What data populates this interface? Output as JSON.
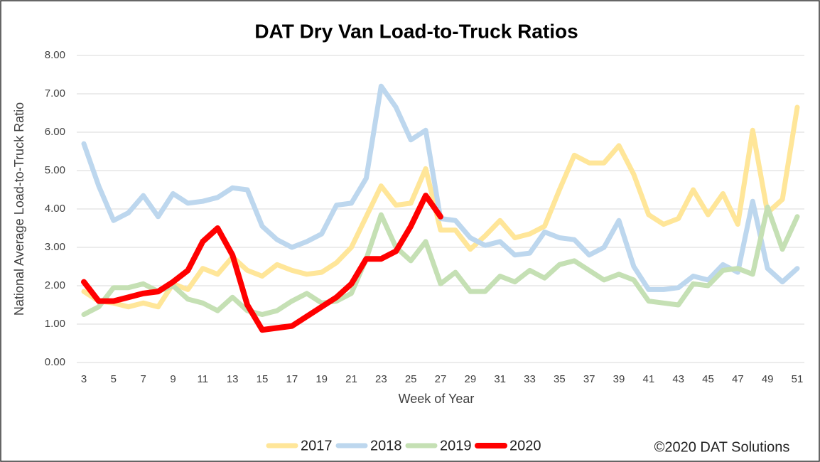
{
  "chart_data": {
    "type": "line",
    "title": "DAT Dry Van Load-to-Truck Ratios",
    "x_label": "Week of Year",
    "y_label": "National Average Load-to-Truck Ratio",
    "source": "©2020 DAT Solutions",
    "categories": [
      3,
      null,
      5,
      null,
      7,
      null,
      9,
      null,
      11,
      null,
      13,
      null,
      15,
      null,
      17,
      null,
      19,
      null,
      21,
      null,
      23,
      null,
      25,
      null,
      27,
      null,
      29,
      null,
      31,
      null,
      33,
      null,
      35,
      null,
      37,
      null,
      39,
      null,
      41,
      null,
      43,
      null,
      45,
      null,
      47,
      null,
      49,
      null,
      51
    ],
    "ylim": [
      0,
      8
    ],
    "yticks": [
      {
        "value": 0,
        "label": "0.00"
      },
      {
        "value": 1,
        "label": "1.00"
      },
      {
        "value": 2,
        "label": "2.00"
      },
      {
        "value": 3,
        "label": "3.00"
      },
      {
        "value": 4,
        "label": "4.00"
      },
      {
        "value": 5,
        "label": "5.00"
      },
      {
        "value": 6,
        "label": "6.00"
      },
      {
        "value": 7,
        "label": "7.00"
      },
      {
        "value": 8,
        "label": "8.00"
      }
    ],
    "grid": true,
    "legend": "bottom",
    "series": [
      {
        "name": "2017",
        "color": "#ffe699",
        "values": [
          1.85,
          1.6,
          1.55,
          1.45,
          1.55,
          1.45,
          2.05,
          1.9,
          2.45,
          2.3,
          2.75,
          2.4,
          2.25,
          2.55,
          2.4,
          2.3,
          2.35,
          2.6,
          3.0,
          3.8,
          4.6,
          4.1,
          4.15,
          5.05,
          3.45,
          3.45,
          2.95,
          3.3,
          3.7,
          3.25,
          3.35,
          3.55,
          4.5,
          5.4,
          5.2,
          5.2,
          5.65,
          4.9,
          3.85,
          3.6,
          3.75,
          4.5,
          3.85,
          4.4,
          3.6,
          6.05,
          3.9,
          4.25,
          6.65
        ]
      },
      {
        "name": "2018",
        "color": "#bdd7ee",
        "values": [
          5.7,
          4.6,
          3.7,
          3.9,
          4.35,
          3.8,
          4.4,
          4.15,
          4.2,
          4.3,
          4.55,
          4.5,
          3.55,
          3.2,
          3.0,
          3.15,
          3.35,
          4.1,
          4.15,
          4.8,
          7.2,
          6.65,
          5.8,
          6.05,
          3.75,
          3.7,
          3.25,
          3.05,
          3.15,
          2.8,
          2.85,
          3.4,
          3.25,
          3.2,
          2.8,
          3.0,
          3.7,
          2.5,
          1.9,
          1.9,
          1.95,
          2.25,
          2.15,
          2.55,
          2.35,
          4.2,
          2.45,
          2.1,
          2.45
        ]
      },
      {
        "name": "2019",
        "color": "#c5e0b4",
        "values": [
          1.25,
          1.45,
          1.95,
          1.95,
          2.05,
          1.85,
          2.0,
          1.65,
          1.55,
          1.35,
          1.7,
          1.35,
          1.25,
          1.35,
          1.6,
          1.8,
          1.55,
          1.6,
          1.8,
          2.7,
          3.85,
          3.0,
          2.65,
          3.15,
          2.05,
          2.35,
          1.85,
          1.85,
          2.25,
          2.1,
          2.4,
          2.2,
          2.55,
          2.65,
          2.4,
          2.15,
          2.3,
          2.15,
          1.6,
          1.55,
          1.5,
          2.05,
          2.0,
          2.4,
          2.45,
          2.3,
          4.05,
          2.95,
          3.8
        ]
      },
      {
        "name": "2020",
        "color": "#ff0000",
        "values": [
          2.1,
          1.6,
          1.6,
          1.7,
          1.8,
          1.85,
          2.1,
          2.4,
          3.15,
          3.5,
          2.8,
          1.5,
          0.85,
          0.9,
          0.95,
          1.2,
          1.45,
          1.7,
          2.05,
          2.7,
          2.7,
          2.9,
          3.55,
          4.35,
          3.8,
          null,
          null,
          null,
          null,
          null,
          null,
          null,
          null,
          null,
          null,
          null,
          null,
          null,
          null,
          null,
          null,
          null,
          null,
          null,
          null,
          null,
          null,
          null,
          null
        ]
      }
    ]
  }
}
